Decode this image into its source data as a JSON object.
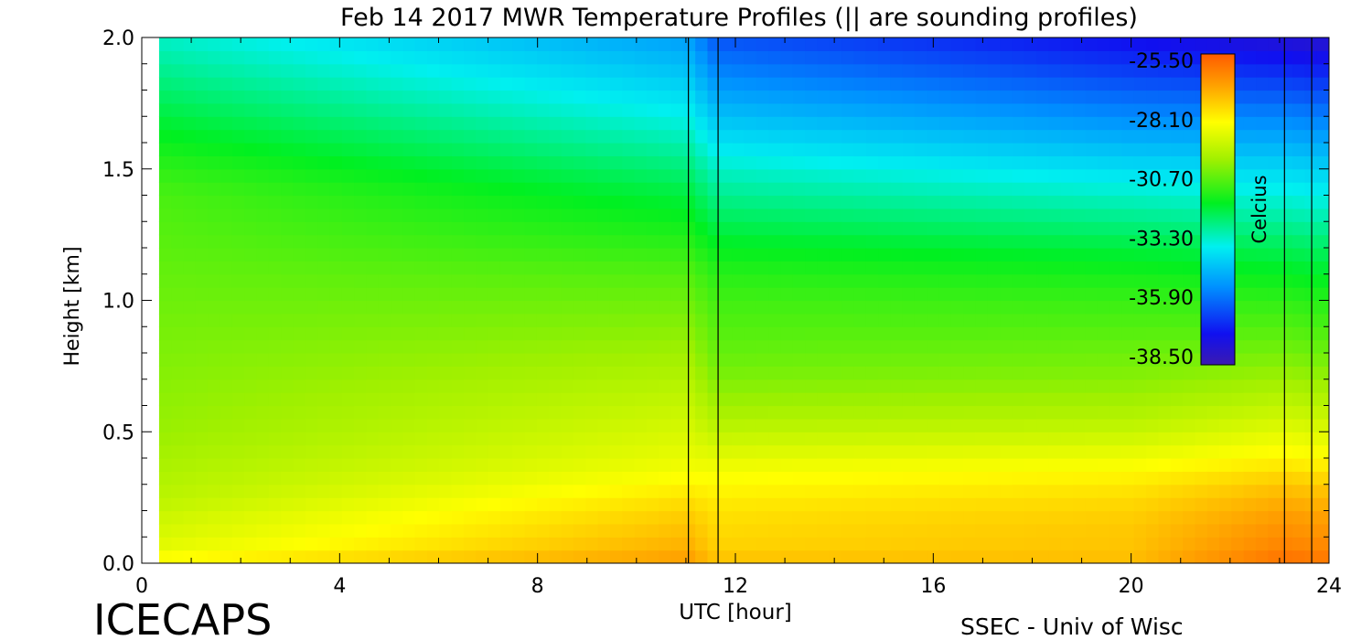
{
  "chart_data": {
    "type": "heatmap",
    "title": "Feb 14 2017 MWR Temperature Profiles (|| are sounding profiles)",
    "xlabel": "UTC [hour]",
    "ylabel": "Height [km]",
    "xlim": [
      0,
      24
    ],
    "ylim": [
      0,
      2
    ],
    "x_ticks": [
      "0",
      "4",
      "8",
      "12",
      "16",
      "20",
      "24"
    ],
    "y_ticks": [
      "0.0",
      "0.5",
      "1.0",
      "1.5",
      "2.0"
    ],
    "data_start_hour": 0.35,
    "sounding_profiles": [
      {
        "start_hour": 11.05,
        "end_hour": 11.65
      },
      {
        "start_hour": 23.1,
        "end_hour": 23.65
      }
    ],
    "colorbar": {
      "label": "Celcius",
      "vmin": -38.5,
      "vmax": -25.5,
      "ticks": [
        "-25.50",
        "-28.10",
        "-30.70",
        "-33.30",
        "-35.90",
        "-38.50"
      ]
    },
    "heights_km": [
      0.0,
      0.02,
      0.05,
      0.1,
      0.15,
      0.2,
      0.25,
      0.3,
      0.35,
      0.4,
      0.5,
      0.6,
      0.7,
      0.8,
      0.9,
      1.0,
      1.1,
      1.2,
      1.3,
      1.4,
      1.5,
      1.6,
      1.7,
      1.8,
      1.9,
      2.0
    ],
    "profile_hours": [
      0.35,
      11.05,
      11.65,
      20.0,
      23.1,
      23.65
    ],
    "profiles_celsius": [
      [
        -31.5,
        -28.4,
        -28.7,
        -29.0,
        -29.1,
        -29.3,
        -29.5,
        -29.6,
        -29.7,
        -29.8,
        -30.0,
        -30.1,
        -30.2,
        -30.3,
        -30.4,
        -30.5,
        -30.6,
        -30.7,
        -30.8,
        -30.9,
        -31.2,
        -31.6,
        -32.0,
        -32.4,
        -32.8,
        -33.2
      ],
      [
        -31.5,
        -26.8,
        -27.0,
        -27.2,
        -27.4,
        -27.6,
        -27.9,
        -28.2,
        -28.5,
        -28.7,
        -29.0,
        -29.3,
        -29.6,
        -29.9,
        -30.2,
        -30.5,
        -30.8,
        -31.2,
        -31.6,
        -32.0,
        -32.5,
        -33.0,
        -33.5,
        -34.0,
        -34.5,
        -35.0
      ],
      [
        -31.5,
        -27.4,
        -27.6,
        -27.7,
        -27.8,
        -27.9,
        -28.1,
        -28.3,
        -28.5,
        -28.8,
        -29.4,
        -29.9,
        -30.3,
        -30.6,
        -30.8,
        -31.0,
        -31.3,
        -31.7,
        -32.2,
        -32.7,
        -33.2,
        -33.8,
        -34.4,
        -35.0,
        -35.6,
        -36.2
      ],
      [
        -31.5,
        -27.3,
        -27.4,
        -27.4,
        -27.5,
        -27.6,
        -27.8,
        -28.0,
        -28.3,
        -28.6,
        -29.3,
        -29.8,
        -30.2,
        -30.5,
        -30.8,
        -31.1,
        -31.5,
        -32.0,
        -32.6,
        -33.2,
        -33.9,
        -34.6,
        -35.3,
        -36.0,
        -36.7,
        -37.3
      ],
      [
        -31.5,
        -26.0,
        -26.2,
        -26.4,
        -26.6,
        -26.8,
        -27.1,
        -27.4,
        -27.8,
        -28.2,
        -28.8,
        -29.4,
        -29.9,
        -30.4,
        -30.8,
        -31.2,
        -31.7,
        -32.2,
        -32.8,
        -33.4,
        -34.0,
        -34.7,
        -35.4,
        -36.2,
        -37.0,
        -37.8
      ],
      [
        -31.5,
        -26.1,
        -26.3,
        -26.5,
        -26.7,
        -26.9,
        -27.2,
        -27.5,
        -27.9,
        -28.3,
        -28.9,
        -29.5,
        -30.0,
        -30.5,
        -30.9,
        -31.3,
        -31.8,
        -32.3,
        -32.9,
        -33.5,
        -34.1,
        -34.8,
        -35.5,
        -36.3,
        -37.1,
        -37.9
      ]
    ]
  },
  "footer": {
    "site": "ICECAPS",
    "credit": "SSEC - Univ of Wisc"
  }
}
